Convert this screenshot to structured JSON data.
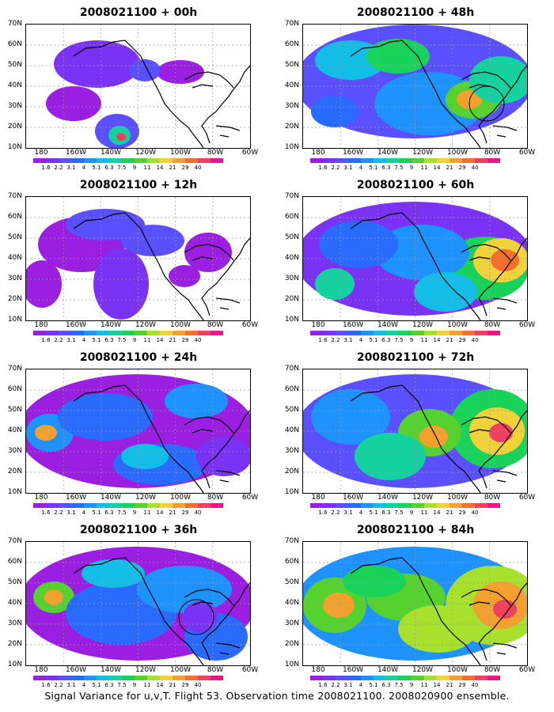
{
  "figure": {
    "caption": "Signal Variance for u,v,T. Flight 53. Observation time 2008021100. 2008020900 ensemble."
  },
  "lat_labels": [
    "70N",
    "60N",
    "50N",
    "40N",
    "30N",
    "20N",
    "10N"
  ],
  "lon_labels": [
    "180",
    "160W",
    "140W",
    "120W",
    "100W",
    "80W",
    "60W"
  ],
  "colorbar": {
    "levels": [
      "1.6",
      "2.2",
      "3.1",
      "4",
      "5.1",
      "6.3",
      "7.5",
      "9",
      "11",
      "14",
      "21",
      "29",
      "40"
    ],
    "colors": [
      "#9a1fe0",
      "#7a33f5",
      "#5a50ff",
      "#2a6bff",
      "#1e93ff",
      "#12bde6",
      "#14d2a0",
      "#18d25a",
      "#55d22d",
      "#a7e12d",
      "#f0d23a",
      "#f2a12e",
      "#f26f2e",
      "#f04060",
      "#f0148c"
    ]
  },
  "panels": [
    {
      "title": "2008021100 + 00h",
      "col": 0,
      "row": 0,
      "intensity": 0
    },
    {
      "title": "2008021100 + 12h",
      "col": 0,
      "row": 1,
      "intensity": 1
    },
    {
      "title": "2008021100 + 24h",
      "col": 0,
      "row": 2,
      "intensity": 2
    },
    {
      "title": "2008021100 + 36h",
      "col": 0,
      "row": 3,
      "intensity": 3
    },
    {
      "title": "2008021100 + 48h",
      "col": 1,
      "row": 0,
      "intensity": 4
    },
    {
      "title": "2008021100 + 60h",
      "col": 1,
      "row": 1,
      "intensity": 5
    },
    {
      "title": "2008021100 + 72h",
      "col": 1,
      "row": 2,
      "intensity": 6
    },
    {
      "title": "2008021100 + 84h",
      "col": 1,
      "row": 3,
      "intensity": 7
    }
  ]
}
